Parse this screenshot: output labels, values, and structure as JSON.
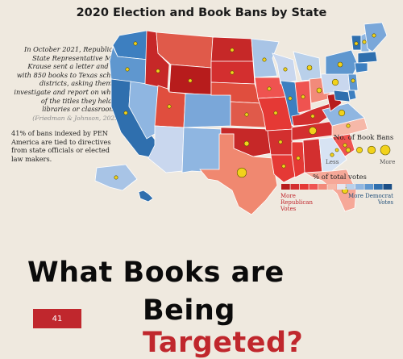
{
  "title": "2020 Election and Book Bans by State",
  "intro": {
    "text": "In October 2021, Republican State Representative Matt Krause sent a letter and list with 850 books to Texas school districts, asking them to investigate and report on which of the titles they held in libraries or classrooms.",
    "citation": "(Friedman & Johnson, 2022)"
  },
  "note": "41% of bans indexed by PEN America are tied to directives from state officials or elected law makers.",
  "legend": {
    "bubbles_title": "No. of Book Bans",
    "less": "Less",
    "more": "More",
    "votes_title": "% of total votes",
    "rep_label": "More Republican Votes",
    "dem_label": "More Democrat Votes",
    "scale_colors": [
      "#b71c1c",
      "#d32f2f",
      "#e53935",
      "#ef5350",
      "#f28a7a",
      "#f6b8a8",
      "#e6e6ee",
      "#b9d0ea",
      "#8fb6e1",
      "#5f97cf",
      "#2f6fae",
      "#1c4f86"
    ]
  },
  "colors": {
    "background": "#efe9df",
    "accent": "#c0272d",
    "bubble": "#f2d21b",
    "bubble_stroke": "#5b5300"
  },
  "states": [
    {
      "id": "WA",
      "color": "#3d7fc0"
    },
    {
      "id": "OR",
      "color": "#5f97cf"
    },
    {
      "id": "CA",
      "color": "#2f6fae"
    },
    {
      "id": "NV",
      "color": "#8fb6e1"
    },
    {
      "id": "ID",
      "color": "#c62828"
    },
    {
      "id": "MT",
      "color": "#e05a4a"
    },
    {
      "id": "WY",
      "color": "#b71c1c"
    },
    {
      "id": "UT",
      "color": "#e04e3e"
    },
    {
      "id": "AZ",
      "color": "#c9d7ee"
    },
    {
      "id": "CO",
      "color": "#7aa7d9"
    },
    {
      "id": "NM",
      "color": "#8fb6e1"
    },
    {
      "id": "ND",
      "color": "#c62828"
    },
    {
      "id": "SD",
      "color": "#d32f2f"
    },
    {
      "id": "NE",
      "color": "#e04e3e"
    },
    {
      "id": "KS",
      "color": "#e05a4a"
    },
    {
      "id": "OK",
      "color": "#c62828"
    },
    {
      "id": "TX",
      "color": "#f08870"
    },
    {
      "id": "MN",
      "color": "#a8c4e6"
    },
    {
      "id": "IA",
      "color": "#ef5350"
    },
    {
      "id": "MO",
      "color": "#e53935"
    },
    {
      "id": "AR",
      "color": "#d32f2f"
    },
    {
      "id": "LA",
      "color": "#e53935"
    },
    {
      "id": "WI",
      "color": "#c9d7ee"
    },
    {
      "id": "IL",
      "color": "#3d7fc0"
    },
    {
      "id": "MI",
      "color": "#b9d0ea"
    },
    {
      "id": "IN",
      "color": "#ef5350"
    },
    {
      "id": "OH",
      "color": "#f28a7a"
    },
    {
      "id": "KY",
      "color": "#d32f2f"
    },
    {
      "id": "TN",
      "color": "#d32f2f"
    },
    {
      "id": "MS",
      "color": "#e53935"
    },
    {
      "id": "AL",
      "color": "#d32f2f"
    },
    {
      "id": "GA",
      "color": "#d7e3f3"
    },
    {
      "id": "FL",
      "color": "#f6a898"
    },
    {
      "id": "SC",
      "color": "#ef5350"
    },
    {
      "id": "NC",
      "color": "#f6b8a8"
    },
    {
      "id": "VA",
      "color": "#8fb6e1"
    },
    {
      "id": "WV",
      "color": "#b71c1c"
    },
    {
      "id": "PA",
      "color": "#c9d7ee"
    },
    {
      "id": "NY",
      "color": "#5f97cf"
    },
    {
      "id": "VT",
      "color": "#2f6fae"
    },
    {
      "id": "NH",
      "color": "#8fb6e1"
    },
    {
      "id": "ME",
      "color": "#7aa7d9"
    },
    {
      "id": "MA",
      "color": "#2f6fae"
    },
    {
      "id": "CT",
      "color": "#3d7fc0"
    },
    {
      "id": "NJ",
      "color": "#5f97cf"
    },
    {
      "id": "DE",
      "color": "#3d7fc0"
    },
    {
      "id": "MD",
      "color": "#2f6fae"
    },
    {
      "id": "AK",
      "color": "#a8c4e6"
    },
    {
      "id": "HI",
      "color": "#2f6fae"
    }
  ],
  "book_bans": [
    {
      "state": "WA",
      "size": 1
    },
    {
      "state": "OR",
      "size": 1
    },
    {
      "state": "CA",
      "size": 1
    },
    {
      "state": "ID",
      "size": 1
    },
    {
      "state": "UT",
      "size": 1
    },
    {
      "state": "WY",
      "size": 1
    },
    {
      "state": "ND",
      "size": 1
    },
    {
      "state": "SD",
      "size": 1
    },
    {
      "state": "MN",
      "size": 1
    },
    {
      "state": "WI",
      "size": 1
    },
    {
      "state": "MI",
      "size": 2
    },
    {
      "state": "IA",
      "size": 1
    },
    {
      "state": "IL",
      "size": 1
    },
    {
      "state": "IN",
      "size": 1
    },
    {
      "state": "OH",
      "size": 2
    },
    {
      "state": "PA",
      "size": 3
    },
    {
      "state": "NY",
      "size": 2
    },
    {
      "state": "NJ",
      "size": 1
    },
    {
      "state": "VA",
      "size": 3
    },
    {
      "state": "NC",
      "size": 1
    },
    {
      "state": "SC",
      "size": 1
    },
    {
      "state": "GA",
      "size": 1
    },
    {
      "state": "FL",
      "size": 3
    },
    {
      "state": "TN",
      "size": 4
    },
    {
      "state": "KY",
      "size": 1
    },
    {
      "state": "MO",
      "size": 1
    },
    {
      "state": "AR",
      "size": 1
    },
    {
      "state": "OK",
      "size": 2
    },
    {
      "state": "KS",
      "size": 1
    },
    {
      "state": "TX",
      "size": 5
    },
    {
      "state": "MS",
      "size": 1
    },
    {
      "state": "LA",
      "size": 1
    },
    {
      "state": "AK",
      "size": 1
    },
    {
      "state": "ME",
      "size": 1
    },
    {
      "state": "NH",
      "size": 1
    },
    {
      "state": "VT",
      "size": 1
    }
  ],
  "headline": {
    "line1": "What Books are",
    "line2_a": "Being ",
    "line2_b": "Targeted?"
  },
  "page_number": "41"
}
